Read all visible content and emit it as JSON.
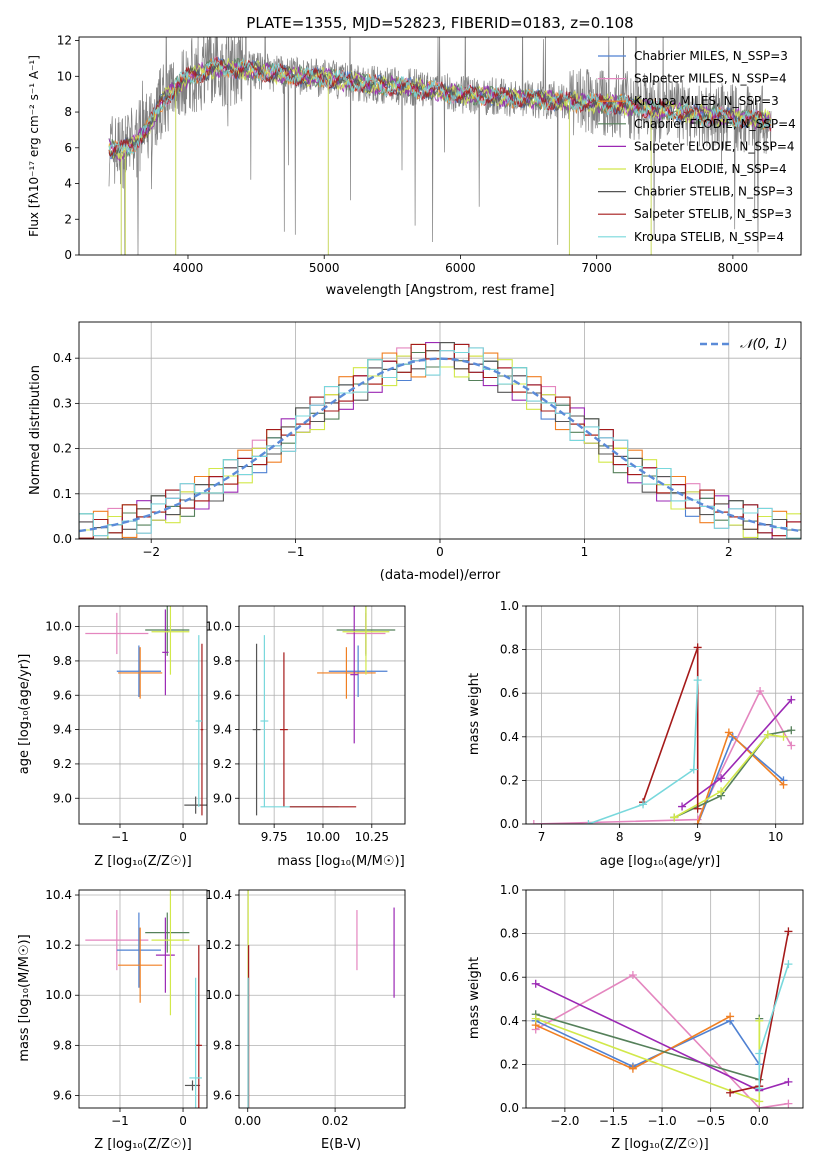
{
  "chart_data": [
    {
      "type": "line",
      "title": "PLATE=1355, MJD=52823, FIBERID=0183, z=0.108",
      "xlabel": "wavelength [Angstrom, rest frame]",
      "ylabel": "Flux [fλ10⁻¹⁷ erg cm⁻² s⁻¹ A⁻¹]",
      "xlim": [
        3200,
        8500
      ],
      "ylim": [
        0,
        12.2
      ],
      "xticks": [
        "4000",
        "5000",
        "6000",
        "7000",
        "8000"
      ],
      "yticks": [
        "0",
        "2",
        "4",
        "6",
        "8",
        "10",
        "12"
      ],
      "grid": false,
      "legend_position": "right",
      "series": [
        {
          "name": "Chabrier MILES, N_SSP=3",
          "color": "#4f81d2"
        },
        {
          "name": "Salpeter MILES, N_SSP=4",
          "color": "#e486bf"
        },
        {
          "name": "Kroupa MILES, N_SSP=3",
          "color": "#f07f22"
        },
        {
          "name": "Chabrier ELODIE, N_SSP=4",
          "color": "#55805a"
        },
        {
          "name": "Salpeter ELODIE, N_SSP=4",
          "color": "#9b28b4"
        },
        {
          "name": "Kroupa ELODIE, N_SSP=4",
          "color": "#d2e84a"
        },
        {
          "name": "Chabrier STELIB, N_SSP=3",
          "color": "#555555"
        },
        {
          "name": "Salpeter STELIB, N_SSP=3",
          "color": "#a51a1a"
        },
        {
          "name": "Kroupa STELIB, N_SSP=4",
          "color": "#78d8dc"
        }
      ],
      "continuum": {
        "x": [
          3420,
          3500,
          3600,
          3700,
          3800,
          3900,
          4000,
          4100,
          4200,
          4400,
          4600,
          4800,
          5000,
          5200,
          5400,
          5600,
          5800,
          6000,
          6200,
          6400,
          6600,
          6800,
          7000,
          7200,
          7400,
          7600,
          7800,
          8000,
          8200,
          8280
        ],
        "y": [
          6.0,
          5.8,
          6.2,
          7.0,
          8.5,
          9.3,
          10.0,
          10.2,
          10.5,
          10.4,
          10.2,
          10.0,
          9.9,
          9.7,
          9.5,
          9.4,
          9.2,
          9.0,
          8.9,
          8.8,
          8.7,
          8.6,
          8.5,
          8.4,
          8.2,
          8.0,
          7.8,
          7.7,
          7.6,
          7.5
        ]
      },
      "noise_amplitude": 1.2
    },
    {
      "type": "line",
      "xlabel": "(data-model)/error",
      "ylabel": "Normed distribution",
      "xlim": [
        -2.5,
        2.5
      ],
      "ylim": [
        0,
        0.48
      ],
      "xticks": [
        "−2",
        "−1",
        "0",
        "1",
        "2"
      ],
      "yticks": [
        "0.0",
        "0.1",
        "0.2",
        "0.3",
        "0.4"
      ],
      "grid": true,
      "legend_position": "top-right",
      "reference": {
        "name": "𝒩(0, 1)",
        "mean": 0,
        "sigma": 1,
        "color": "#5b8bd8"
      },
      "bin_width": 0.1,
      "histograms": [
        {
          "color": "#4f81d2",
          "dy": [
            0.0,
            0.01,
            -0.02,
            0.01,
            0.0,
            -0.01,
            0.02,
            -0.01,
            0.01,
            0.0
          ]
        },
        {
          "color": "#e486bf",
          "dy": [
            0.01,
            -0.01,
            0.02,
            0.0,
            -0.02,
            0.01,
            0.0,
            0.02,
            -0.01,
            0.01
          ]
        },
        {
          "color": "#f07f22",
          "dy": [
            -0.01,
            0.02,
            0.0,
            -0.02,
            0.01,
            0.0,
            -0.01,
            0.01,
            0.02,
            -0.01
          ]
        },
        {
          "color": "#55805a",
          "dy": [
            0.02,
            0.0,
            -0.01,
            0.01,
            -0.01,
            0.02,
            0.0,
            -0.02,
            0.01,
            0.0
          ]
        },
        {
          "color": "#9b28b4",
          "dy": [
            -0.02,
            0.01,
            0.01,
            0.0,
            0.02,
            -0.01,
            0.01,
            0.0,
            -0.02,
            0.01
          ]
        },
        {
          "color": "#d2e84a",
          "dy": [
            0.0,
            -0.02,
            0.01,
            0.02,
            0.0,
            -0.01,
            -0.02,
            0.01,
            0.0,
            0.02
          ]
        },
        {
          "color": "#555555",
          "dy": [
            0.01,
            0.0,
            0.0,
            -0.01,
            0.01,
            0.02,
            -0.01,
            0.0,
            0.01,
            -0.02
          ]
        },
        {
          "color": "#a51a1a",
          "dy": [
            -0.01,
            0.01,
            -0.01,
            0.02,
            0.0,
            0.0,
            0.02,
            -0.01,
            -0.01,
            0.01
          ]
        },
        {
          "color": "#78d8dc",
          "dy": [
            0.02,
            -0.01,
            0.0,
            0.0,
            -0.02,
            0.01,
            0.01,
            0.02,
            0.0,
            -0.01
          ]
        }
      ]
    },
    {
      "type": "scatter",
      "xlabel": "Z [log₁₀(Z/Z☉)]",
      "ylabel": "age  [log₁₀(age/yr)]",
      "xlim": [
        -1.65,
        0.38
      ],
      "ylim": [
        8.85,
        10.12
      ],
      "xticks": [
        "−1",
        "0"
      ],
      "yticks": [
        "9.0",
        "9.2",
        "9.4",
        "9.6",
        "9.8",
        "10.0"
      ],
      "grid": true,
      "points": [
        {
          "color": "#e486bf",
          "x": -1.05,
          "xerr": 0.5,
          "y": 9.96,
          "yerr": 0.12
        },
        {
          "color": "#4f81d2",
          "x": -0.7,
          "xerr": 0.35,
          "y": 9.74,
          "yerr": 0.15
        },
        {
          "color": "#f07f22",
          "x": -0.68,
          "xerr": 0.35,
          "y": 9.73,
          "yerr": 0.15
        },
        {
          "color": "#55805a",
          "x": -0.25,
          "xerr": 0.35,
          "y": 9.98,
          "yerr": 0.15
        },
        {
          "color": "#9b28b4",
          "x": -0.28,
          "xerr": 0.05,
          "y": 9.85,
          "yerr": 0.25
        },
        {
          "color": "#d2e84a",
          "x": -0.2,
          "xerr": 0.3,
          "y": 9.97,
          "yerr": 0.25
        },
        {
          "color": "#555555",
          "x": 0.2,
          "xerr": 0.18,
          "y": 8.96,
          "yerr": 0.05
        },
        {
          "color": "#a51a1a",
          "x": 0.3,
          "xerr": 0.02,
          "y": 9.4,
          "yerr": 0.5
        },
        {
          "color": "#78d8dc",
          "x": 0.25,
          "xerr": 0.05,
          "y": 9.45,
          "yerr": 0.5
        }
      ]
    },
    {
      "type": "scatter",
      "xlabel": "mass [log₁₀(M/M☉)]",
      "xlim": [
        9.57,
        10.42
      ],
      "ylim": [
        8.85,
        10.12
      ],
      "xticks": [
        "9.75",
        "10.00",
        "10.25"
      ],
      "yticks": [
        "9.0",
        "9.2",
        "9.4",
        "9.6",
        "9.8",
        "10.0"
      ],
      "grid": true,
      "points": [
        {
          "color": "#e486bf",
          "x": 10.22,
          "xerr": 0.1,
          "y": 9.96,
          "yerr": 0.12
        },
        {
          "color": "#4f81d2",
          "x": 10.18,
          "xerr": 0.15,
          "y": 9.74,
          "yerr": 0.15
        },
        {
          "color": "#f07f22",
          "x": 10.12,
          "xerr": 0.15,
          "y": 9.73,
          "yerr": 0.15
        },
        {
          "color": "#55805a",
          "x": 10.22,
          "xerr": 0.15,
          "y": 9.98,
          "yerr": 0.15
        },
        {
          "color": "#9b28b4",
          "x": 10.16,
          "xerr": 0.02,
          "y": 9.72,
          "yerr": 0.4
        },
        {
          "color": "#d2e84a",
          "x": 10.22,
          "xerr": 0.12,
          "y": 9.97,
          "yerr": 0.25
        },
        {
          "color": "#555555",
          "x": 9.66,
          "xerr": 0.02,
          "y": 9.4,
          "yerr": 0.5
        },
        {
          "color": "#a51a1a",
          "x": 9.8,
          "xerr": 0.02,
          "y": 9.4,
          "yerr": 0.45
        },
        {
          "color": "#78d8dc",
          "x": 9.7,
          "xerr": 0.02,
          "y": 9.45,
          "yerr": 0.5
        },
        {
          "color": "#78d8dc",
          "x": 9.88,
          "xerr": 0.2,
          "y": 8.95,
          "yerr": 0.0
        },
        {
          "color": "#a51a1a",
          "x": 10.0,
          "xerr": 0.17,
          "y": 8.95,
          "yerr": 0.0
        }
      ]
    },
    {
      "type": "line",
      "xlabel": "age  [log₁₀(age/yr)]",
      "ylabel": "mass weight",
      "xlim": [
        6.8,
        10.35
      ],
      "ylim": [
        0,
        1.0
      ],
      "xticks": [
        "7",
        "8",
        "9",
        "10"
      ],
      "yticks": [
        "0.0",
        "0.2",
        "0.4",
        "0.6",
        "0.8",
        "1.0"
      ],
      "grid": true,
      "series": [
        {
          "color": "#e486bf",
          "x": [
            6.9,
            9.0,
            9.8,
            10.2
          ],
          "y": [
            0.0,
            0.02,
            0.61,
            0.36
          ]
        },
        {
          "color": "#4f81d2",
          "x": [
            9.0,
            9.45,
            10.1
          ],
          "y": [
            0.0,
            0.4,
            0.2
          ]
        },
        {
          "color": "#f07f22",
          "x": [
            9.0,
            9.4,
            10.1
          ],
          "y": [
            0.0,
            0.42,
            0.18
          ]
        },
        {
          "color": "#55805a",
          "x": [
            8.7,
            9.3,
            9.9,
            10.2
          ],
          "y": [
            0.03,
            0.13,
            0.41,
            0.43
          ]
        },
        {
          "color": "#9b28b4",
          "x": [
            8.8,
            9.3,
            10.2
          ],
          "y": [
            0.08,
            0.21,
            0.57
          ]
        },
        {
          "color": "#d2e84a",
          "x": [
            8.7,
            9.3,
            9.9,
            10.1
          ],
          "y": [
            0.03,
            0.15,
            0.41,
            0.4
          ]
        },
        {
          "color": "#a51a1a",
          "x": [
            8.3,
            9.0,
            9.0
          ],
          "y": [
            0.1,
            0.81,
            0.07
          ]
        },
        {
          "color": "#78d8dc",
          "x": [
            7.6,
            8.3,
            8.95,
            9.0
          ],
          "y": [
            0.0,
            0.09,
            0.25,
            0.66
          ]
        }
      ]
    },
    {
      "type": "scatter",
      "xlabel": "Z [log₁₀(Z/Z☉)]",
      "ylabel": "mass [log₁₀(M/M☉)]",
      "xlim": [
        -1.65,
        0.38
      ],
      "ylim": [
        9.55,
        10.42
      ],
      "xticks": [
        "−1",
        "0"
      ],
      "yticks": [
        "9.6",
        "9.8",
        "10.0",
        "10.2",
        "10.4"
      ],
      "grid": true,
      "points": [
        {
          "color": "#e486bf",
          "x": -1.05,
          "xerr": 0.5,
          "y": 10.22,
          "yerr": 0.12
        },
        {
          "color": "#4f81d2",
          "x": -0.7,
          "xerr": 0.35,
          "y": 10.18,
          "yerr": 0.15
        },
        {
          "color": "#f07f22",
          "x": -0.68,
          "xerr": 0.35,
          "y": 10.12,
          "yerr": 0.15
        },
        {
          "color": "#55805a",
          "x": -0.25,
          "xerr": 0.35,
          "y": 10.25,
          "yerr": 0.08
        },
        {
          "color": "#9b28b4",
          "x": -0.28,
          "xerr": 0.15,
          "y": 10.16,
          "yerr": 0.15
        },
        {
          "color": "#d2e84a",
          "x": -0.2,
          "xerr": 0.3,
          "y": 10.22,
          "yerr": 0.3
        },
        {
          "color": "#555555",
          "x": 0.15,
          "xerr": 0.12,
          "y": 9.64,
          "yerr": 0.02
        },
        {
          "color": "#a51a1a",
          "x": 0.25,
          "xerr": 0.05,
          "y": 9.8,
          "yerr": 0.4
        },
        {
          "color": "#78d8dc",
          "x": 0.2,
          "xerr": 0.1,
          "y": 9.67,
          "yerr": 0.4
        }
      ]
    },
    {
      "type": "scatter",
      "xlabel": "E(B-V)",
      "xlim": [
        -0.002,
        0.036
      ],
      "ylim": [
        9.55,
        10.42
      ],
      "xticks": [
        "0.00",
        "0.02"
      ],
      "yticks": [
        "9.6",
        "9.8",
        "10.0",
        "10.2",
        "10.4"
      ],
      "grid": true,
      "points": [
        {
          "color": "#e486bf",
          "x": 0.025,
          "xerr": 0,
          "y": 10.22,
          "yerr": 0.12
        },
        {
          "color": "#9b28b4",
          "x": 0.0335,
          "xerr": 0,
          "y": 10.17,
          "yerr": 0.18
        },
        {
          "color": "#d2e84a",
          "x": 0.0001,
          "xerr": 0,
          "y": 10.22,
          "yerr": 0.3
        },
        {
          "color": "#a51a1a",
          "x": 0.0002,
          "xerr": 0,
          "y": 9.8,
          "yerr": 0.4
        },
        {
          "color": "#78d8dc",
          "x": 0.0001,
          "xerr": 0,
          "y": 9.67,
          "yerr": 0.4
        }
      ]
    },
    {
      "type": "line",
      "xlabel": "Z [log₁₀(Z/Z☉)]",
      "ylabel": "mass weight",
      "xlim": [
        -2.4,
        0.45
      ],
      "ylim": [
        0,
        1.0
      ],
      "xticks": [
        "−2.0",
        "−1.5",
        "−1.0",
        "−0.5",
        "0.0"
      ],
      "yticks": [
        "0.0",
        "0.2",
        "0.4",
        "0.6",
        "0.8",
        "1.0"
      ],
      "grid": true,
      "series": [
        {
          "color": "#e486bf",
          "x": [
            -2.3,
            -1.3,
            0.0,
            0.3
          ],
          "y": [
            0.36,
            0.61,
            0.0,
            0.02
          ]
        },
        {
          "color": "#4f81d2",
          "x": [
            -2.3,
            -1.3,
            -0.3,
            0.0
          ],
          "y": [
            0.4,
            0.19,
            0.4,
            0.2
          ]
        },
        {
          "color": "#f07f22",
          "x": [
            -2.3,
            -1.3,
            -0.3
          ],
          "y": [
            0.38,
            0.18,
            0.42
          ]
        },
        {
          "color": "#55805a",
          "x": [
            -2.3,
            0.0,
            0.0
          ],
          "y": [
            0.43,
            0.13,
            0.41
          ]
        },
        {
          "color": "#9b28b4",
          "x": [
            -2.3,
            0.0,
            0.3
          ],
          "y": [
            0.57,
            0.08,
            0.12
          ]
        },
        {
          "color": "#d2e84a",
          "x": [
            -2.3,
            0.0,
            0.0
          ],
          "y": [
            0.41,
            0.03,
            0.4
          ]
        },
        {
          "color": "#a51a1a",
          "x": [
            -0.3,
            0.0,
            0.3
          ],
          "y": [
            0.07,
            0.1,
            0.81
          ]
        },
        {
          "color": "#78d8dc",
          "x": [
            0.0,
            0.0,
            0.3
          ],
          "y": [
            0.09,
            0.25,
            0.66
          ]
        }
      ]
    }
  ]
}
